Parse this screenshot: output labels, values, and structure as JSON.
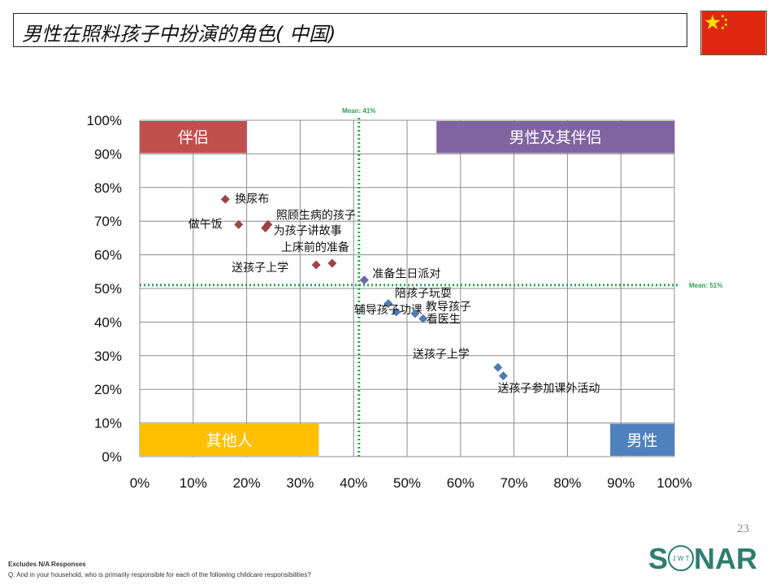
{
  "header": {
    "title": "男性在照料孩子中扮演的角色( 中国)",
    "flag_icon": "china-flag-icon",
    "flag_colors": {
      "field": "#DE2910",
      "stars": "#FFDE00"
    }
  },
  "footer": {
    "page_number": "23",
    "note1": "Excludes N/A Responses",
    "note2": "Q. And in your household, who is primarily responsible for each of the following childcare responsibilities?",
    "logo": {
      "text": "SONAR",
      "sub": "JWT",
      "color": "#2E7D6F"
    }
  },
  "chart_data": {
    "type": "scatter",
    "x_ticks": [
      "0%",
      "10%",
      "20%",
      "30%",
      "40%",
      "50%",
      "60%",
      "70%",
      "80%",
      "90%",
      "100%"
    ],
    "y_ticks": [
      "0%",
      "10%",
      "20%",
      "30%",
      "40%",
      "50%",
      "60%",
      "70%",
      "80%",
      "90%",
      "100%"
    ],
    "xlim": [
      0,
      100
    ],
    "ylim": [
      0,
      100
    ],
    "grid": true,
    "mean_lines": {
      "x": {
        "value": 41,
        "label": "Mean: 41%"
      },
      "y": {
        "value": 51,
        "label": "Mean: 51%"
      },
      "color": "#2FA052"
    },
    "quadrants": [
      {
        "label": "伴侣",
        "color": "#C0504D",
        "x0": 0,
        "x1": 20,
        "y0": 90,
        "y1": 100
      },
      {
        "label": "男性及其伴侣",
        "color": "#8064A2",
        "x0": 55.5,
        "x1": 100,
        "y0": 90,
        "y1": 100
      },
      {
        "label": "其他人",
        "color": "#FFC000",
        "x0": 0,
        "x1": 33.5,
        "y0": 0,
        "y1": 10
      },
      {
        "label": "男性",
        "color": "#4F81BD",
        "x0": 88,
        "x1": 100,
        "y0": 0,
        "y1": 10
      }
    ],
    "series": [
      {
        "color": "#A0424A",
        "points": [
          {
            "label": "换尿布",
            "x": 16,
            "y": 76.5
          },
          {
            "label": "做午饭",
            "x": 18.5,
            "y": 69
          },
          {
            "label": "照顾生病的孩子",
            "x": 24,
            "y": 69
          },
          {
            "label": "为孩子讲故事",
            "x": 23.5,
            "y": 68
          },
          {
            "label": "上床前的准备",
            "x": 36,
            "y": 57.5
          },
          {
            "label": "送孩子上学",
            "x": 33,
            "y": 57
          }
        ]
      },
      {
        "color": "#7063A7",
        "points": [
          {
            "label": "准备生日派对",
            "x": 42,
            "y": 52.5
          }
        ]
      },
      {
        "color": "#4F7AB5",
        "points": [
          {
            "label": "陪孩子玩耍",
            "x": 46.5,
            "y": 45.5
          },
          {
            "label": "辅导孩子功课",
            "x": 48,
            "y": 43
          },
          {
            "label": "教导孩子",
            "x": 51.5,
            "y": 42.5
          },
          {
            "label": "看医生",
            "x": 53,
            "y": 41
          },
          {
            "label": "送孩子上学",
            "x": 67,
            "y": 26.5
          },
          {
            "label": "送孩子参加课外活动",
            "x": 68,
            "y": 24
          }
        ]
      }
    ]
  }
}
